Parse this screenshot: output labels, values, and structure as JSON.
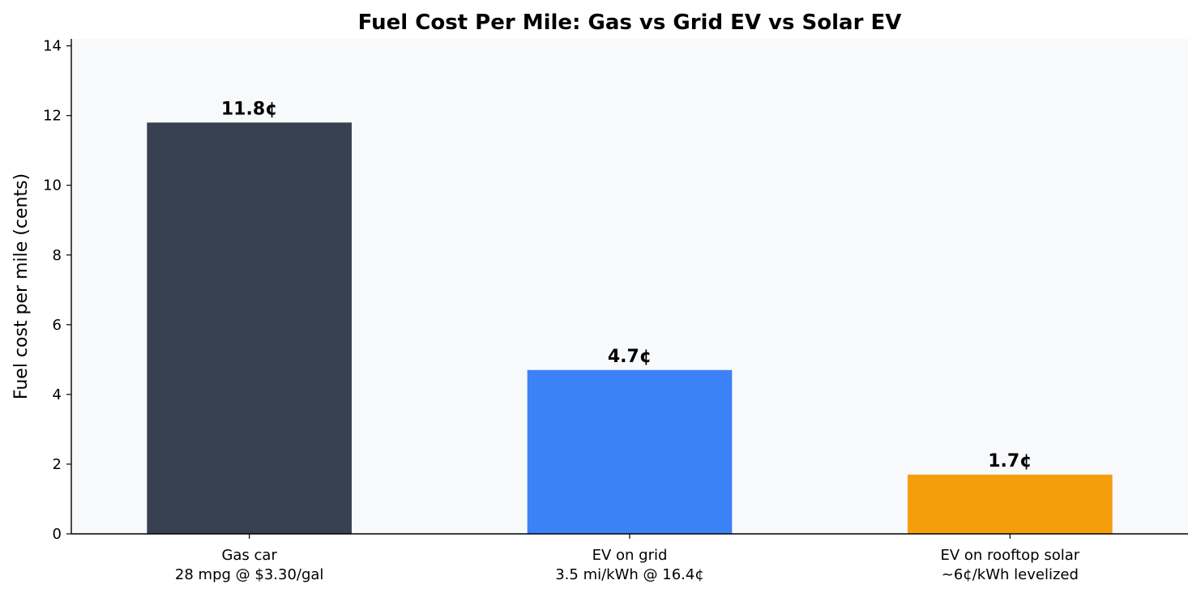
{
  "chart_data": {
    "type": "bar",
    "title": "Fuel Cost Per Mile: Gas vs Grid EV vs Solar EV",
    "xlabel": "",
    "ylabel": "Fuel cost per mile (cents)",
    "ylim": [
      0,
      14.2
    ],
    "yticks": [
      0,
      2,
      4,
      6,
      8,
      10,
      12,
      14
    ],
    "grid": false,
    "categories": [
      [
        "Gas car",
        "28 mpg @ $3.30/gal"
      ],
      [
        "EV on grid",
        "3.5 mi/kWh @ 16.4¢"
      ],
      [
        "EV on rooftop solar",
        "~6¢/kWh levelized"
      ]
    ],
    "values": [
      11.8,
      4.7,
      1.7
    ],
    "value_labels": [
      "11.8¢",
      "4.7¢",
      "1.7¢"
    ],
    "colors": [
      "#374151",
      "#3b82f6",
      "#f59e0b"
    ],
    "plot_background": "#f8f9fb"
  }
}
